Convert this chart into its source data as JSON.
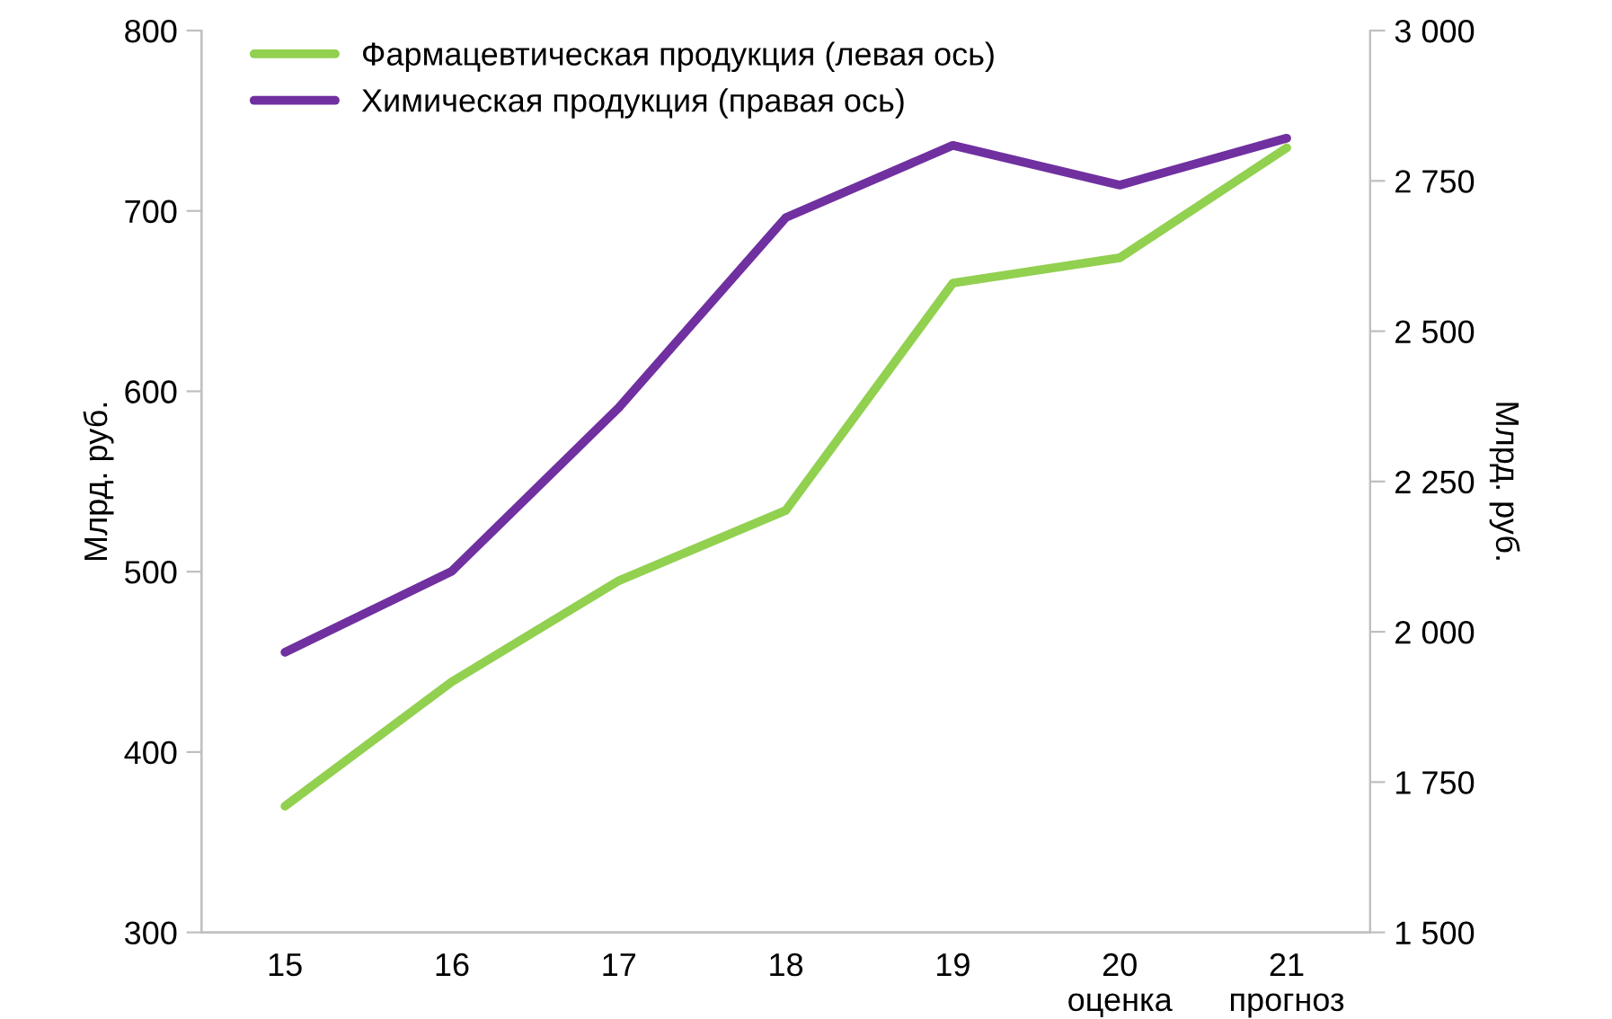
{
  "chart_data": {
    "type": "line",
    "ylabel": "Млрд. руб.",
    "y2label": "Млрд. руб.",
    "categories": [
      "15",
      "16",
      "17",
      "18",
      "19",
      "20\nоценка",
      "21\nпрогноз"
    ],
    "series": [
      {
        "name": "Фармацевтическая продукция (левая ось)",
        "color": "#92d050",
        "values": [
          370,
          439,
          495,
          534,
          660,
          674,
          735
        ]
      },
      {
        "name": "Химическая продукция (правая ось)",
        "color": "#7030a0",
        "axis": "y2",
        "values": [
          1966,
          2101,
          2373,
          2689,
          2809,
          2743,
          2821
        ]
      }
    ],
    "ylim": [
      300,
      800
    ],
    "yticks": [
      300,
      400,
      500,
      600,
      700,
      800
    ],
    "y2lim": [
      1500,
      3000
    ],
    "y2ticks": [
      {
        "value": 1500,
        "label": "1 500"
      },
      {
        "value": 1750,
        "label": "1 750"
      },
      {
        "value": 2000,
        "label": "2 000"
      },
      {
        "value": 2250,
        "label": "2 250"
      },
      {
        "value": 2500,
        "label": "2 500"
      },
      {
        "value": 2750,
        "label": "2 750"
      },
      {
        "value": 3000,
        "label": "3 000"
      }
    ],
    "grid": false,
    "legend": "top left",
    "marker": "none",
    "line_style": "solid"
  }
}
